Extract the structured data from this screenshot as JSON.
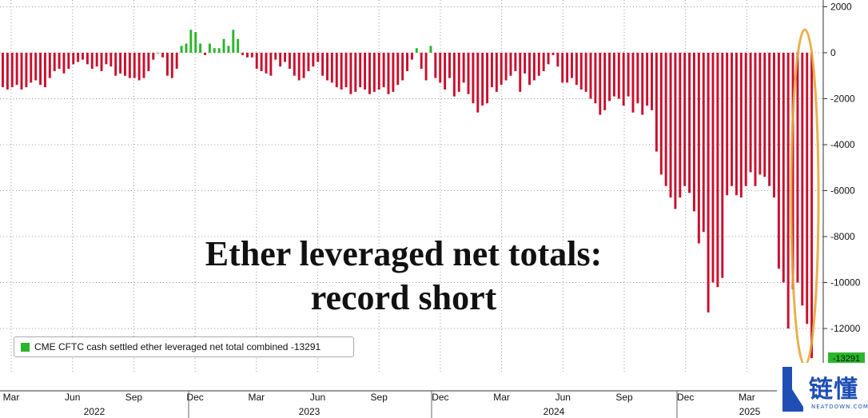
{
  "chart_data": {
    "type": "bar",
    "title_line1": "Ether leveraged net totals:",
    "title_line2": "record short",
    "legend_label": "CME CFTC cash settled ether leveraged net total combined -13291",
    "last_value_label": "-13291",
    "ylim": [
      -13291,
      2000
    ],
    "yticks": [
      2000,
      0,
      -2000,
      -4000,
      -6000,
      -8000,
      -10000,
      -12000
    ],
    "x_month_labels": [
      "Mar",
      "Jun",
      "Sep",
      "Dec",
      "Mar",
      "Jun",
      "Sep",
      "Dec",
      "Mar",
      "Jun",
      "Sep",
      "Dec",
      "Mar"
    ],
    "x_year_labels": [
      "2022",
      "2023",
      "2024",
      "2025"
    ],
    "grid": true,
    "y_axis_position": "right",
    "colors": {
      "negative": "#c8102e",
      "positive": "#2bb52b",
      "highlight": "#e5a83c"
    },
    "values": [
      -1500,
      -1600,
      -1500,
      -1400,
      -1600,
      -1500,
      -1300,
      -1200,
      -1400,
      -1500,
      -1100,
      -800,
      -700,
      -900,
      -700,
      -500,
      -400,
      -300,
      -500,
      -700,
      -600,
      -800,
      -500,
      -600,
      -1000,
      -900,
      -1000,
      -1100,
      -1100,
      -1200,
      -1100,
      -800,
      -300,
      0,
      -200,
      -1000,
      -1100,
      -700,
      300,
      400,
      1000,
      900,
      400,
      -100,
      400,
      200,
      200,
      600,
      300,
      1000,
      600,
      -100,
      -200,
      -200,
      -700,
      -800,
      -900,
      -1000,
      -300,
      -600,
      -400,
      -700,
      -1000,
      -1200,
      -1100,
      -800,
      -600,
      -400,
      -1000,
      -1200,
      -1300,
      -1500,
      -1600,
      -1500,
      -1800,
      -1700,
      -1500,
      -1600,
      -1800,
      -1700,
      -1600,
      -1500,
      -1800,
      -1700,
      -1400,
      -1200,
      -800,
      -300,
      200,
      -700,
      -1200,
      300,
      -1100,
      -1300,
      -1600,
      -1100,
      -1900,
      -1700,
      -1300,
      -1800,
      -2200,
      -2600,
      -2300,
      -2200,
      -1500,
      -1700,
      -1400,
      -1200,
      -1000,
      -800,
      -1700,
      -900,
      -1400,
      -1200,
      -1000,
      -800,
      -500,
      -100,
      -600,
      -1300,
      -1300,
      -1100,
      -1400,
      -1600,
      -1700,
      -2000,
      -2200,
      -2700,
      -2500,
      -2100,
      -1900,
      -2000,
      -2300,
      -1900,
      -2600,
      -2200,
      -2700,
      -2300,
      -2500,
      -4300,
      -5300,
      -5800,
      -6300,
      -6800,
      -6300,
      -5800,
      -6100,
      -6900,
      -8300,
      -7800,
      -11300,
      -10000,
      -10200,
      -9800,
      -6200,
      -5800,
      -6200,
      -6300,
      -5800,
      -5200,
      -5800,
      -5300,
      -5400,
      -5800,
      -6300,
      -9400,
      -10000,
      -12000,
      -10300,
      -10000,
      -11000,
      -11800,
      -13291
    ]
  }
}
